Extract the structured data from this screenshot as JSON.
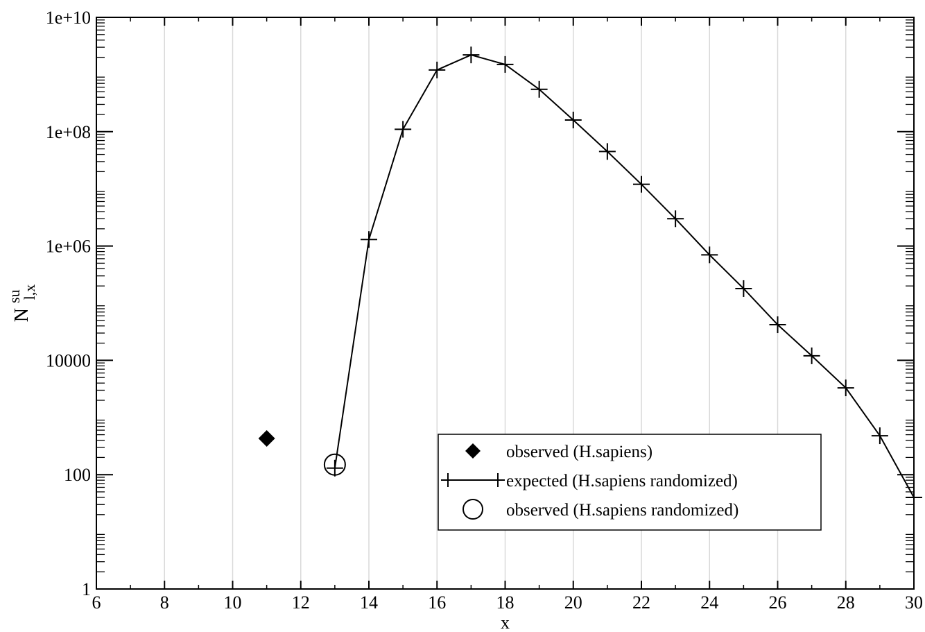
{
  "chart_data": {
    "type": "scatter",
    "xlabel": "x",
    "ylabel": {
      "base": "N",
      "sup": "su",
      "sub": "l,x"
    },
    "xlim": [
      6,
      30
    ],
    "ylim": [
      1,
      10000000000
    ],
    "yscale": "log",
    "grid": {
      "vertical": true,
      "horizontal": false
    },
    "legend_position": "bottom-right",
    "x_ticks": [
      6,
      8,
      10,
      12,
      14,
      16,
      18,
      20,
      22,
      24,
      26,
      28,
      30
    ],
    "y_ticks": [
      {
        "value": 1,
        "label": "1"
      },
      {
        "value": 100,
        "label": "100"
      },
      {
        "value": 10000,
        "label": "10000"
      },
      {
        "value": 1000000,
        "label": "1e+06"
      },
      {
        "value": 100000000,
        "label": "1e+08"
      },
      {
        "value": 10000000000,
        "label": "1e+10"
      }
    ],
    "series": [
      {
        "name": "observed (H.sapiens)",
        "marker": "filled-diamond",
        "line": false,
        "points": [
          [
            11,
            430
          ]
        ]
      },
      {
        "name": "expected (H.sapiens randomized)",
        "marker": "plus",
        "line": true,
        "points": [
          [
            13,
            130
          ],
          [
            14,
            1300000
          ],
          [
            15,
            110000000
          ],
          [
            16,
            1200000000
          ],
          [
            17,
            2200000000
          ],
          [
            18,
            1500000000
          ],
          [
            19,
            550000000
          ],
          [
            20,
            160000000
          ],
          [
            21,
            45000000
          ],
          [
            22,
            12000000
          ],
          [
            23,
            3000000
          ],
          [
            24,
            700000
          ],
          [
            25,
            180000
          ],
          [
            26,
            42000
          ],
          [
            27,
            12000
          ],
          [
            28,
            3300
          ],
          [
            29,
            480
          ],
          [
            30,
            40
          ]
        ]
      },
      {
        "name": "observed (H.sapiens randomized)",
        "marker": "open-circle",
        "line": false,
        "points": [
          [
            13,
            150
          ]
        ]
      }
    ]
  }
}
